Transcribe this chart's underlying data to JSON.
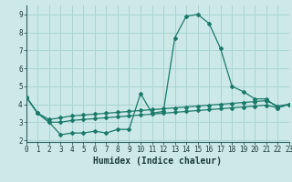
{
  "title": "",
  "xlabel": "Humidex (Indice chaleur)",
  "background_color": "#cce8e8",
  "grid_color": "#aad4d4",
  "line_color": "#1a7a6a",
  "x_values": [
    0,
    1,
    2,
    3,
    4,
    5,
    6,
    7,
    8,
    9,
    10,
    11,
    12,
    13,
    14,
    15,
    16,
    17,
    18,
    19,
    20,
    21,
    22,
    23
  ],
  "line1": [
    4.4,
    3.5,
    3.0,
    2.3,
    2.4,
    2.4,
    2.5,
    2.4,
    2.6,
    2.6,
    4.6,
    3.5,
    3.6,
    7.7,
    8.9,
    9.0,
    8.5,
    7.1,
    5.0,
    4.7,
    4.3,
    4.3,
    3.8,
    4.0
  ],
  "line2": [
    4.4,
    3.5,
    3.0,
    3.0,
    3.1,
    3.15,
    3.2,
    3.25,
    3.3,
    3.35,
    3.4,
    3.45,
    3.5,
    3.55,
    3.6,
    3.65,
    3.7,
    3.75,
    3.8,
    3.85,
    3.9,
    3.95,
    3.8,
    4.0
  ],
  "line3": [
    4.4,
    3.5,
    3.15,
    3.25,
    3.35,
    3.4,
    3.45,
    3.5,
    3.55,
    3.6,
    3.65,
    3.7,
    3.75,
    3.8,
    3.85,
    3.9,
    3.95,
    4.0,
    4.05,
    4.1,
    4.15,
    4.2,
    3.9,
    4.0
  ],
  "xlim": [
    0,
    23
  ],
  "ylim": [
    1.9,
    9.5
  ],
  "yticks": [
    2,
    3,
    4,
    5,
    6,
    7,
    8,
    9
  ],
  "xticks": [
    0,
    1,
    2,
    3,
    4,
    5,
    6,
    7,
    8,
    9,
    10,
    11,
    12,
    13,
    14,
    15,
    16,
    17,
    18,
    19,
    20,
    21,
    22,
    23
  ],
  "xlabel_fontsize": 7,
  "tick_fontsize": 5.5,
  "marker_size": 2.0,
  "line_width": 0.9
}
